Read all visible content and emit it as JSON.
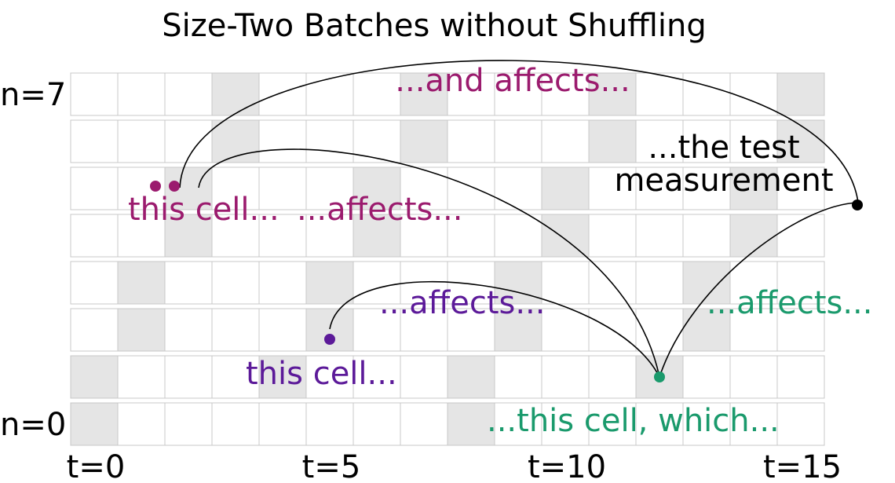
{
  "title": "Size-Two Batches without Shuffling",
  "grid": {
    "rows": 8,
    "cols": 16,
    "row_labels": [
      {
        "row": 7,
        "label": "n=7"
      },
      {
        "row": 0,
        "label": "n=0"
      }
    ],
    "col_labels": [
      {
        "col": 0,
        "label": "t=0"
      },
      {
        "col": 5,
        "label": "t=5"
      },
      {
        "col": 10,
        "label": "t=10"
      },
      {
        "col": 15,
        "label": "t=15"
      }
    ],
    "shaded_color": "#e5e5e5",
    "cell_color": "#ffffff",
    "border_color": "#c8c8c8",
    "shaded_cells": [
      [
        0,
        0
      ],
      [
        0,
        8
      ],
      [
        1,
        0
      ],
      [
        1,
        4
      ],
      [
        1,
        8
      ],
      [
        1,
        12
      ],
      [
        2,
        1
      ],
      [
        2,
        5
      ],
      [
        2,
        9
      ],
      [
        2,
        13
      ],
      [
        3,
        1
      ],
      [
        3,
        5
      ],
      [
        3,
        9
      ],
      [
        3,
        13
      ],
      [
        4,
        2
      ],
      [
        4,
        6
      ],
      [
        4,
        10
      ],
      [
        4,
        14
      ],
      [
        5,
        2
      ],
      [
        5,
        6
      ],
      [
        5,
        10
      ],
      [
        5,
        14
      ],
      [
        6,
        3
      ],
      [
        6,
        7
      ],
      [
        6,
        11
      ],
      [
        6,
        15
      ],
      [
        7,
        3
      ],
      [
        7,
        7
      ],
      [
        7,
        11
      ],
      [
        7,
        15
      ]
    ]
  },
  "colors": {
    "magenta": "#9b1b6e",
    "purple": "#5c1a99",
    "green": "#1a9a6c",
    "black": "#000000"
  },
  "points": [
    {
      "id": "magenta-a",
      "color": "magenta",
      "col": 1.8,
      "row": 5
    },
    {
      "id": "magenta-b",
      "color": "magenta",
      "col": 2.2,
      "row": 5
    },
    {
      "id": "purple",
      "color": "purple",
      "col": 5.5,
      "row": 1.8
    },
    {
      "id": "green",
      "color": "green",
      "col": 12.5,
      "row": 1
    },
    {
      "id": "black",
      "color": "black",
      "col": 16.7,
      "row": 4.65
    }
  ],
  "annotations": [
    {
      "text": "...and affects...",
      "color": "magenta"
    },
    {
      "text": "...the test",
      "color": "black"
    },
    {
      "text": "measurement",
      "color": "black"
    },
    {
      "text": "this cell...",
      "color": "magenta"
    },
    {
      "text": "...affects...",
      "color": "magenta"
    },
    {
      "text": "...affects...",
      "color": "purple"
    },
    {
      "text": "...affects...",
      "color": "green"
    },
    {
      "text": "this cell...",
      "color": "purple"
    },
    {
      "text": "...this cell, which...",
      "color": "green"
    }
  ]
}
